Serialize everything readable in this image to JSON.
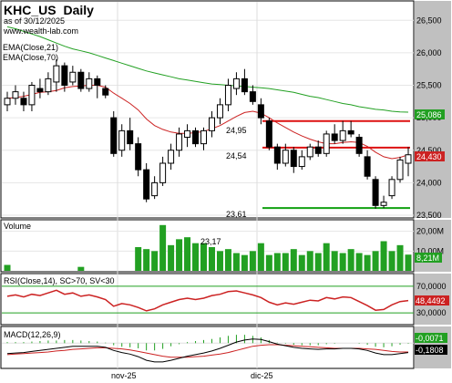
{
  "chart_data": {
    "type": "candlestick",
    "header": {
      "symbol": "KHC_US",
      "interval": "Daily",
      "asof": "as of 30/12/2025",
      "site": "www.wealth-lab.com"
    },
    "x_tick_labels": [
      "nov-25",
      "dic-25"
    ],
    "panels": {
      "price": {
        "yticks": [
          "26,500",
          "26,000",
          "25,500",
          "25,000",
          "24,500",
          "24,000",
          "23,500"
        ],
        "ylim": [
          23.5,
          26.7
        ],
        "indicator_labels": [
          "EMA(Close,21)",
          "EMA(Close,70)"
        ],
        "ema21_color": "#cc2222",
        "ema70_color": "#22a022",
        "ema21_value": "24,430",
        "ema70_value": "25,086",
        "level_labels": [
          "24,95",
          "24,54",
          "23,61"
        ],
        "resistance_levels": [
          24.95,
          24.54
        ],
        "support_level": 23.61,
        "candles": [
          [
            25.2,
            25.4,
            25.1,
            25.3
          ],
          [
            25.3,
            25.5,
            25.2,
            25.4
          ],
          [
            25.3,
            25.4,
            25.1,
            25.2
          ],
          [
            25.2,
            25.55,
            25.1,
            25.5
          ],
          [
            25.45,
            25.6,
            25.3,
            25.4
          ],
          [
            25.4,
            25.7,
            25.35,
            25.6
          ],
          [
            25.55,
            25.9,
            25.4,
            25.8
          ],
          [
            25.8,
            25.85,
            25.4,
            25.5
          ],
          [
            25.55,
            25.8,
            25.5,
            25.7
          ],
          [
            25.7,
            25.75,
            25.4,
            25.45
          ],
          [
            25.45,
            25.7,
            25.4,
            25.6
          ],
          [
            25.6,
            25.65,
            25.3,
            25.5
          ],
          [
            25.45,
            25.5,
            25.3,
            25.35
          ],
          [
            25.0,
            25.1,
            24.4,
            24.45
          ],
          [
            24.5,
            24.9,
            24.4,
            24.8
          ],
          [
            24.8,
            25.0,
            24.5,
            24.6
          ],
          [
            24.6,
            24.7,
            24.1,
            24.2
          ],
          [
            24.2,
            24.3,
            23.7,
            23.75
          ],
          [
            23.8,
            24.1,
            23.75,
            24.0
          ],
          [
            24.0,
            24.4,
            23.95,
            24.3
          ],
          [
            24.3,
            24.6,
            24.2,
            24.5
          ],
          [
            24.5,
            24.85,
            24.4,
            24.75
          ],
          [
            24.7,
            24.9,
            24.55,
            24.8
          ],
          [
            24.8,
            24.85,
            24.55,
            24.6
          ],
          [
            24.6,
            24.85,
            24.5,
            24.8
          ],
          [
            24.8,
            25.1,
            24.7,
            25.0
          ],
          [
            25.0,
            25.3,
            24.9,
            25.2
          ],
          [
            25.2,
            25.6,
            25.1,
            25.5
          ],
          [
            25.45,
            25.7,
            25.35,
            25.6
          ],
          [
            25.6,
            25.75,
            25.35,
            25.4
          ],
          [
            25.4,
            25.5,
            25.2,
            25.25
          ],
          [
            25.2,
            25.3,
            24.9,
            25.0
          ],
          [
            24.95,
            25.0,
            24.5,
            24.55
          ],
          [
            24.55,
            24.6,
            24.2,
            24.3
          ],
          [
            24.3,
            24.6,
            24.25,
            24.5
          ],
          [
            24.5,
            24.55,
            24.15,
            24.25
          ],
          [
            24.25,
            24.5,
            24.2,
            24.4
          ],
          [
            24.4,
            24.6,
            24.35,
            24.55
          ],
          [
            24.55,
            24.65,
            24.4,
            24.45
          ],
          [
            24.45,
            24.8,
            24.4,
            24.75
          ],
          [
            24.75,
            24.9,
            24.6,
            24.65
          ],
          [
            24.65,
            24.95,
            24.6,
            24.8
          ],
          [
            24.8,
            24.95,
            24.7,
            24.75
          ],
          [
            24.7,
            24.75,
            24.4,
            24.45
          ],
          [
            24.4,
            24.5,
            24.05,
            24.1
          ],
          [
            24.05,
            24.1,
            23.6,
            23.65
          ],
          [
            23.65,
            23.8,
            23.61,
            23.7
          ],
          [
            23.8,
            24.1,
            23.75,
            24.05
          ],
          [
            24.05,
            24.4,
            24.0,
            24.35
          ],
          [
            24.3,
            24.55,
            24.1,
            24.43
          ]
        ],
        "ema21": [
          25.3,
          25.31,
          25.33,
          25.36,
          25.39,
          25.4,
          25.42,
          25.46,
          25.48,
          25.49,
          25.5,
          25.5,
          25.47,
          25.38,
          25.3,
          25.22,
          25.12,
          24.98,
          24.88,
          24.82,
          24.78,
          24.76,
          24.76,
          24.77,
          24.79,
          24.83,
          24.88,
          24.95,
          25.02,
          25.08,
          25.1,
          25.07,
          25.0,
          24.92,
          24.85,
          24.78,
          24.72,
          24.67,
          24.63,
          24.6,
          24.6,
          24.62,
          24.63,
          24.62,
          24.56,
          24.47,
          24.4,
          24.37,
          24.39,
          24.43
        ],
        "ema70": [
          26.4,
          26.37,
          26.33,
          26.29,
          26.25,
          26.2,
          26.15,
          26.1,
          26.06,
          26.03,
          26.0,
          25.96,
          25.92,
          25.88,
          25.84,
          25.8,
          25.76,
          25.72,
          25.69,
          25.66,
          25.63,
          25.6,
          25.58,
          25.56,
          25.54,
          25.52,
          25.51,
          25.5,
          25.49,
          25.48,
          25.47,
          25.46,
          25.45,
          25.43,
          25.41,
          25.39,
          25.36,
          25.33,
          25.31,
          25.28,
          25.25,
          25.22,
          25.2,
          25.17,
          25.15,
          25.13,
          25.12,
          25.1,
          25.09,
          25.086
        ]
      },
      "volume": {
        "label": "Volume",
        "yticks": [
          "20,00M",
          "10,00M"
        ],
        "ylim": [
          0,
          24
        ],
        "last_value": "8,21M",
        "annotation": "23,17",
        "color": "#22a022",
        "values": [
          0,
          0,
          0,
          0,
          0,
          0,
          0,
          0,
          0,
          0,
          0,
          0,
          0,
          0,
          0,
          0,
          0,
          0,
          0,
          0,
          0,
          0,
          0,
          0,
          0,
          0,
          0,
          0,
          0,
          0,
          0,
          0,
          0,
          0,
          0,
          0,
          0,
          0,
          0,
          0,
          0,
          0,
          0,
          0,
          0,
          0,
          0,
          0,
          0,
          0
        ],
        "values_visible": [
          3,
          0,
          0,
          0,
          0,
          0,
          0,
          0,
          0,
          2,
          0,
          0,
          0,
          0,
          0,
          0,
          12,
          11,
          10,
          23.17,
          13,
          16,
          17,
          14,
          14,
          12,
          10,
          11,
          9,
          8,
          10,
          14,
          8,
          9,
          9,
          11,
          8,
          10,
          9,
          14,
          10,
          9,
          11,
          9,
          8,
          10,
          15,
          10,
          13,
          8.21
        ]
      },
      "rsi": {
        "label": "RSI(Close,14), SC>70, SV<30",
        "yticks": [
          "70,0000",
          "30,0000"
        ],
        "ylim": [
          15,
          85
        ],
        "last_value": "48,4492",
        "color": "#cc2222",
        "values": [
          55,
          57,
          54,
          58,
          56,
          60,
          64,
          58,
          60,
          55,
          57,
          54,
          50,
          40,
          44,
          42,
          38,
          33,
          36,
          42,
          46,
          50,
          52,
          50,
          52,
          56,
          58,
          62,
          63,
          60,
          57,
          53,
          46,
          42,
          45,
          43,
          46,
          49,
          48,
          53,
          51,
          54,
          53,
          47,
          41,
          34,
          35,
          42,
          47,
          48.45
        ]
      },
      "macd": {
        "label": "MACD(12,26,9)",
        "value_labels": [
          "-0,0071",
          "-0,1808"
        ],
        "ylim": [
          -0.45,
          0.25
        ],
        "macd_color": "#000000",
        "signal_color": "#cc2222",
        "histogram_color": "#22a022",
        "macd_line": [
          -0.2,
          -0.19,
          -0.18,
          -0.16,
          -0.14,
          -0.12,
          -0.1,
          -0.08,
          -0.06,
          -0.06,
          -0.06,
          -0.06,
          -0.08,
          -0.14,
          -0.18,
          -0.21,
          -0.26,
          -0.33,
          -0.36,
          -0.36,
          -0.33,
          -0.29,
          -0.25,
          -0.22,
          -0.19,
          -0.15,
          -0.1,
          -0.04,
          0.02,
          0.06,
          0.08,
          0.07,
          0.03,
          -0.02,
          -0.05,
          -0.08,
          -0.1,
          -0.11,
          -0.12,
          -0.11,
          -0.11,
          -0.1,
          -0.1,
          -0.11,
          -0.14,
          -0.19,
          -0.22,
          -0.22,
          -0.2,
          -0.18
        ],
        "signal_line": [
          -0.22,
          -0.21,
          -0.2,
          -0.19,
          -0.18,
          -0.17,
          -0.15,
          -0.14,
          -0.12,
          -0.11,
          -0.1,
          -0.09,
          -0.09,
          -0.1,
          -0.11,
          -0.13,
          -0.16,
          -0.19,
          -0.22,
          -0.25,
          -0.27,
          -0.27,
          -0.27,
          -0.26,
          -0.25,
          -0.23,
          -0.21,
          -0.18,
          -0.14,
          -0.1,
          -0.06,
          -0.04,
          -0.03,
          -0.03,
          -0.04,
          -0.05,
          -0.06,
          -0.07,
          -0.08,
          -0.09,
          -0.1,
          -0.1,
          -0.1,
          -0.1,
          -0.11,
          -0.12,
          -0.14,
          -0.16,
          -0.17,
          -0.17
        ]
      }
    }
  }
}
